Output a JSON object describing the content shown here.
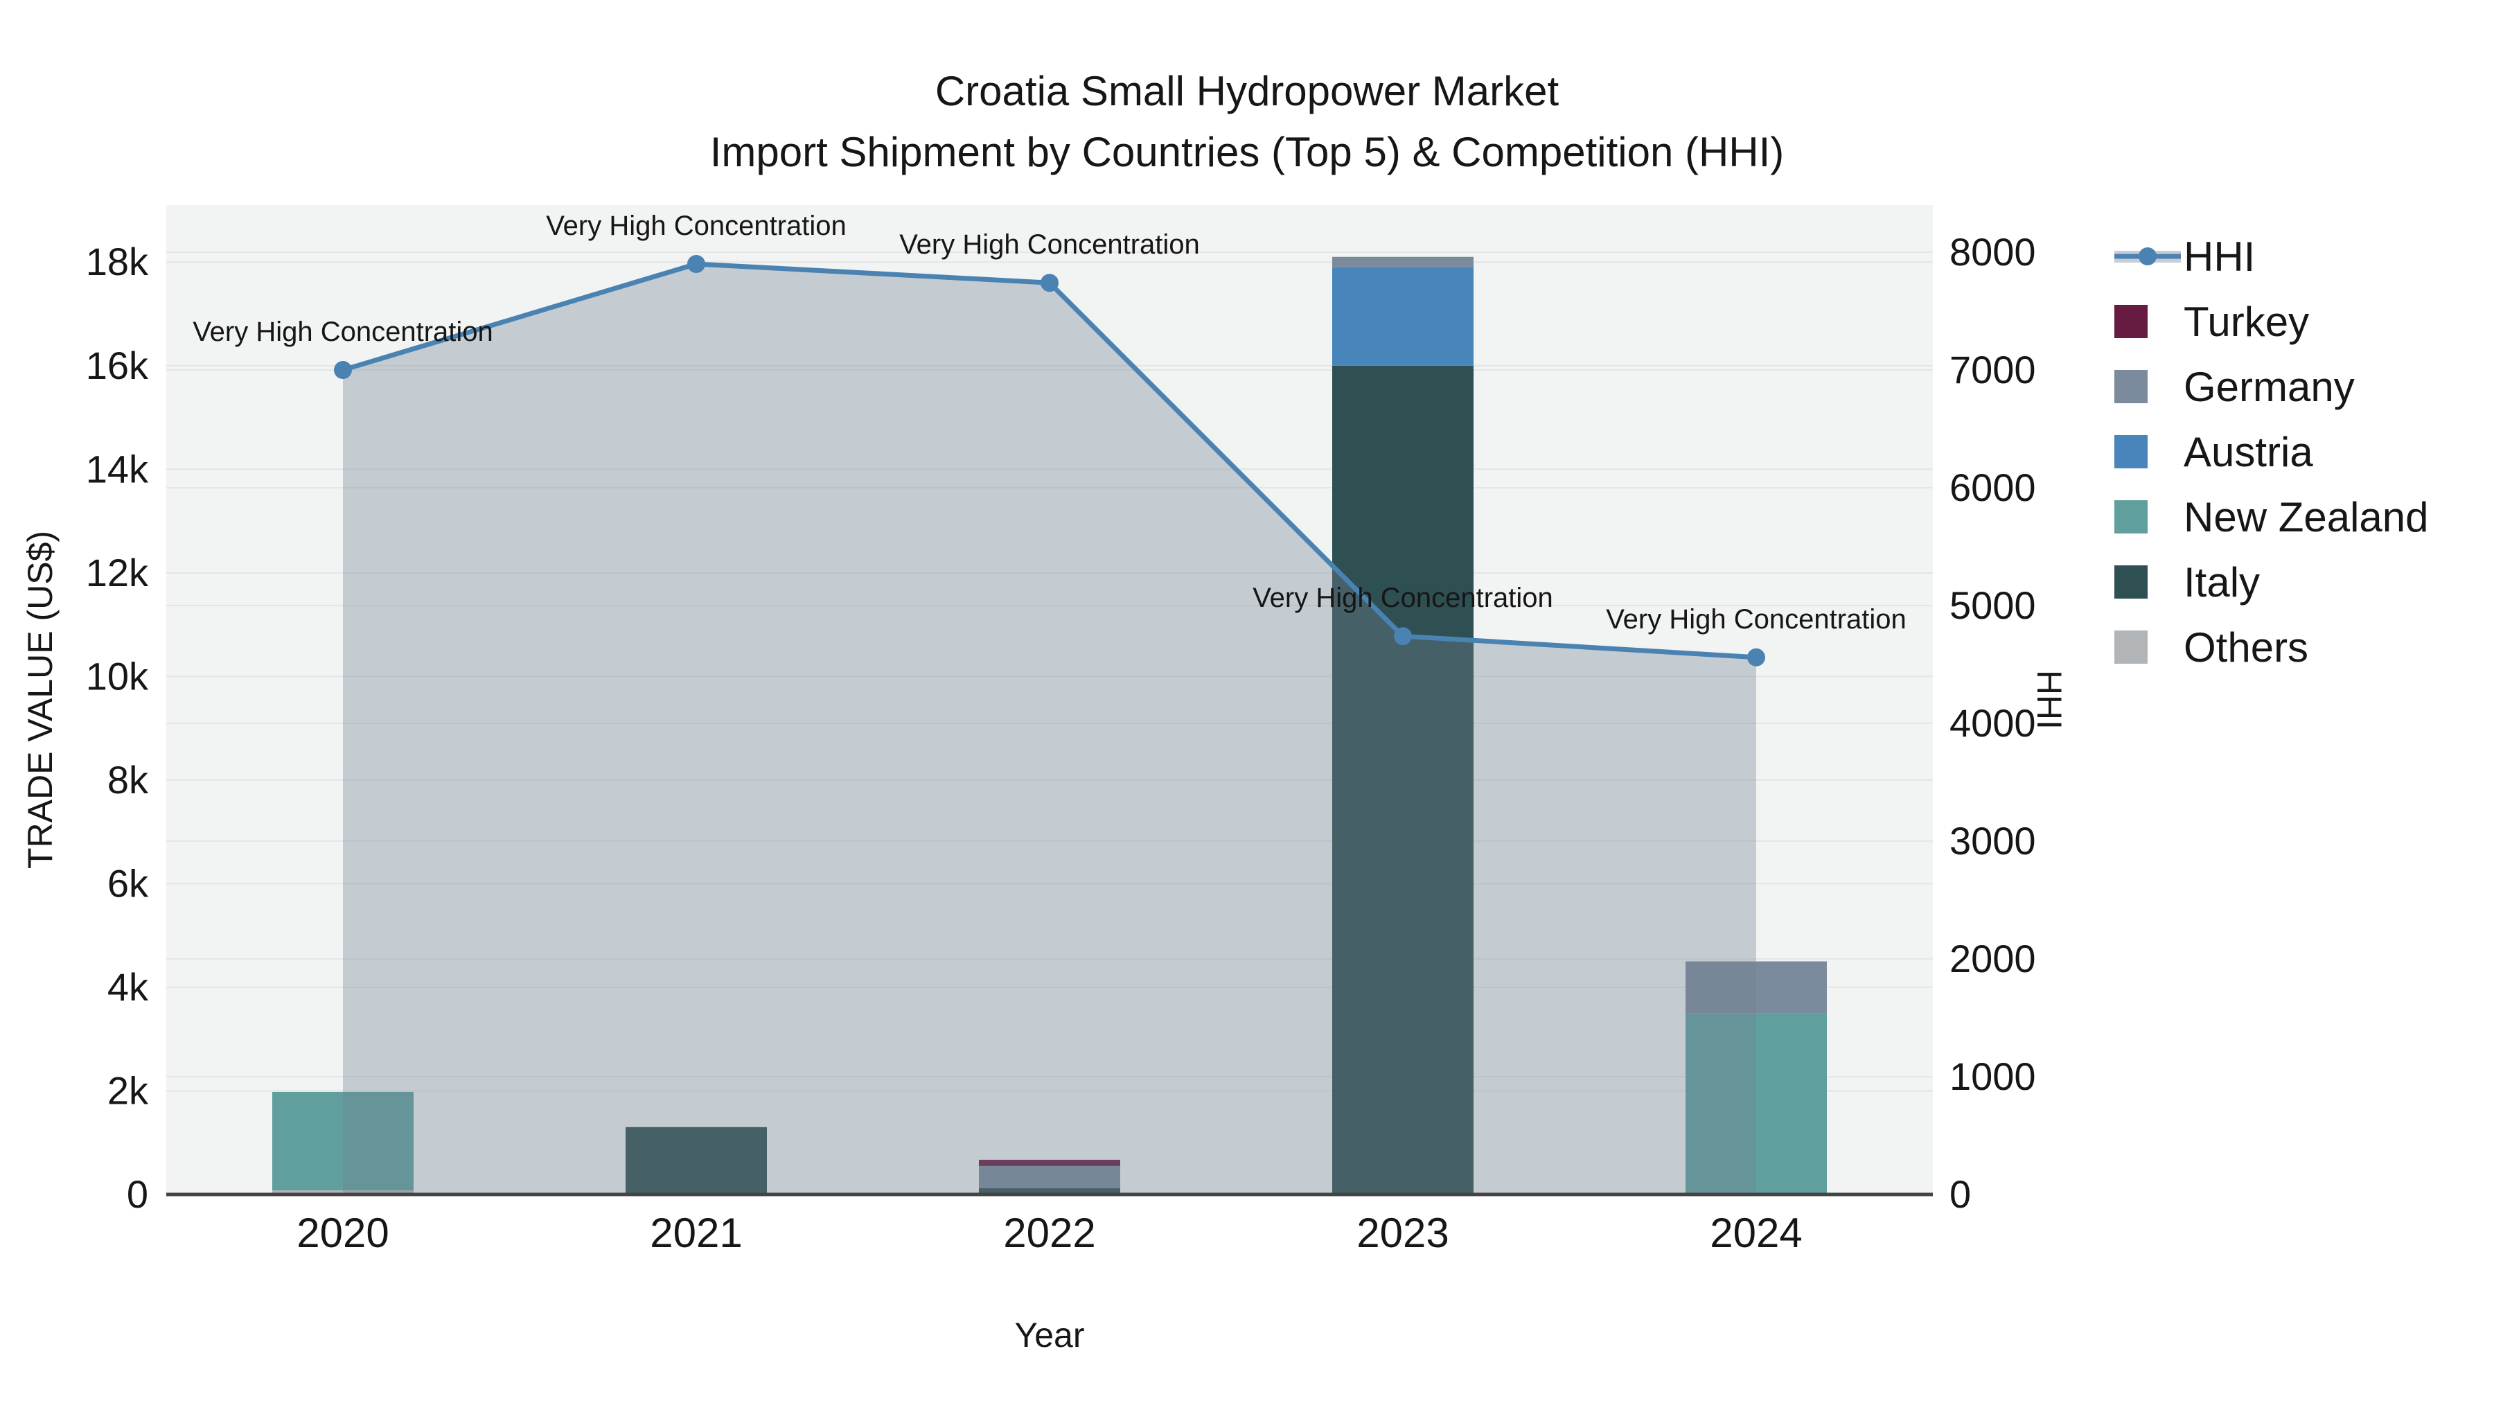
{
  "title": {
    "line1": "Croatia Small Hydropower Market",
    "line2": "Import Shipment by Countries (Top 5) & Competition (HHI)"
  },
  "palette": {
    "hhi_line": "#4a82b2",
    "hhi_fill": "rgba(112,128,144,0.34)",
    "hhi_legend_band": "#c7ccd6",
    "plot_bg": "#f2f3f3",
    "grid": "#e3e5e6",
    "axis_line": "#444444",
    "text": "#161616"
  },
  "legend": {
    "items": [
      {
        "label": "HHI",
        "type": "line",
        "color": "#4a82b2"
      },
      {
        "label": "Turkey",
        "type": "bar",
        "color": "#671b40"
      },
      {
        "label": "Germany",
        "type": "bar",
        "color": "#7b8a9c"
      },
      {
        "label": "Austria",
        "type": "bar",
        "color": "#4885bb"
      },
      {
        "label": "New Zealand",
        "type": "bar",
        "color": "#609f9e"
      },
      {
        "label": "Italy",
        "type": "bar",
        "color": "#2f5053"
      },
      {
        "label": "Others",
        "type": "bar",
        "color": "#b2b5b7"
      }
    ]
  },
  "chart_data": {
    "type": "bar",
    "subtype": "stacked-bar-with-line",
    "categories": [
      "2020",
      "2021",
      "2022",
      "2023",
      "2024"
    ],
    "x": {
      "title": "Year"
    },
    "y_left": {
      "title": "TRADE VALUE (US$)",
      "ticks": [
        0,
        2000,
        4000,
        6000,
        8000,
        10000,
        12000,
        14000,
        16000,
        18000
      ],
      "tick_labels": [
        "0",
        "2k",
        "4k",
        "6k",
        "8k",
        "10k",
        "12k",
        "14k",
        "16k",
        "18k"
      ],
      "range": [
        0,
        19100
      ]
    },
    "y_right": {
      "title": "HHI",
      "ticks": [
        0,
        1000,
        2000,
        3000,
        4000,
        5000,
        6000,
        7000,
        8000
      ],
      "tick_labels": [
        "0",
        "1000",
        "2000",
        "3000",
        "4000",
        "5000",
        "6000",
        "7000",
        "8000"
      ],
      "range": [
        0,
        8400
      ]
    },
    "stack_order_bottom_to_top": [
      "Others",
      "Italy",
      "New Zealand",
      "Austria",
      "Germany",
      "Turkey"
    ],
    "series": [
      {
        "name": "Turkey",
        "type": "bar",
        "color": "#671b40",
        "values": [
          0,
          0,
          120,
          0,
          0
        ]
      },
      {
        "name": "Germany",
        "type": "bar",
        "color": "#7b8a9c",
        "values": [
          0,
          0,
          430,
          200,
          1000
        ]
      },
      {
        "name": "Austria",
        "type": "bar",
        "color": "#4885bb",
        "values": [
          0,
          0,
          0,
          1900,
          0
        ]
      },
      {
        "name": "New Zealand",
        "type": "bar",
        "color": "#609f9e",
        "values": [
          1900,
          0,
          0,
          0,
          3500
        ]
      },
      {
        "name": "Italy",
        "type": "bar",
        "color": "#2f5053",
        "values": [
          0,
          1300,
          120,
          16000,
          0
        ]
      },
      {
        "name": "Others",
        "type": "bar",
        "color": "#b2b5b7",
        "values": [
          80,
          0,
          0,
          0,
          0
        ]
      },
      {
        "name": "HHI",
        "type": "line",
        "axis": "right",
        "color": "#4a82b2",
        "fill": "rgba(112,128,144,0.34)",
        "values": [
          7000,
          7900,
          7740,
          4740,
          4560
        ]
      }
    ],
    "annotations": [
      {
        "category": "2020",
        "text": "Very High Concentration"
      },
      {
        "category": "2021",
        "text": "Very High Concentration"
      },
      {
        "category": "2022",
        "text": "Very High Concentration"
      },
      {
        "category": "2023",
        "text": "Very High Concentration"
      },
      {
        "category": "2024",
        "text": "Very High Concentration"
      }
    ],
    "legend_position": "right",
    "grid": true
  }
}
